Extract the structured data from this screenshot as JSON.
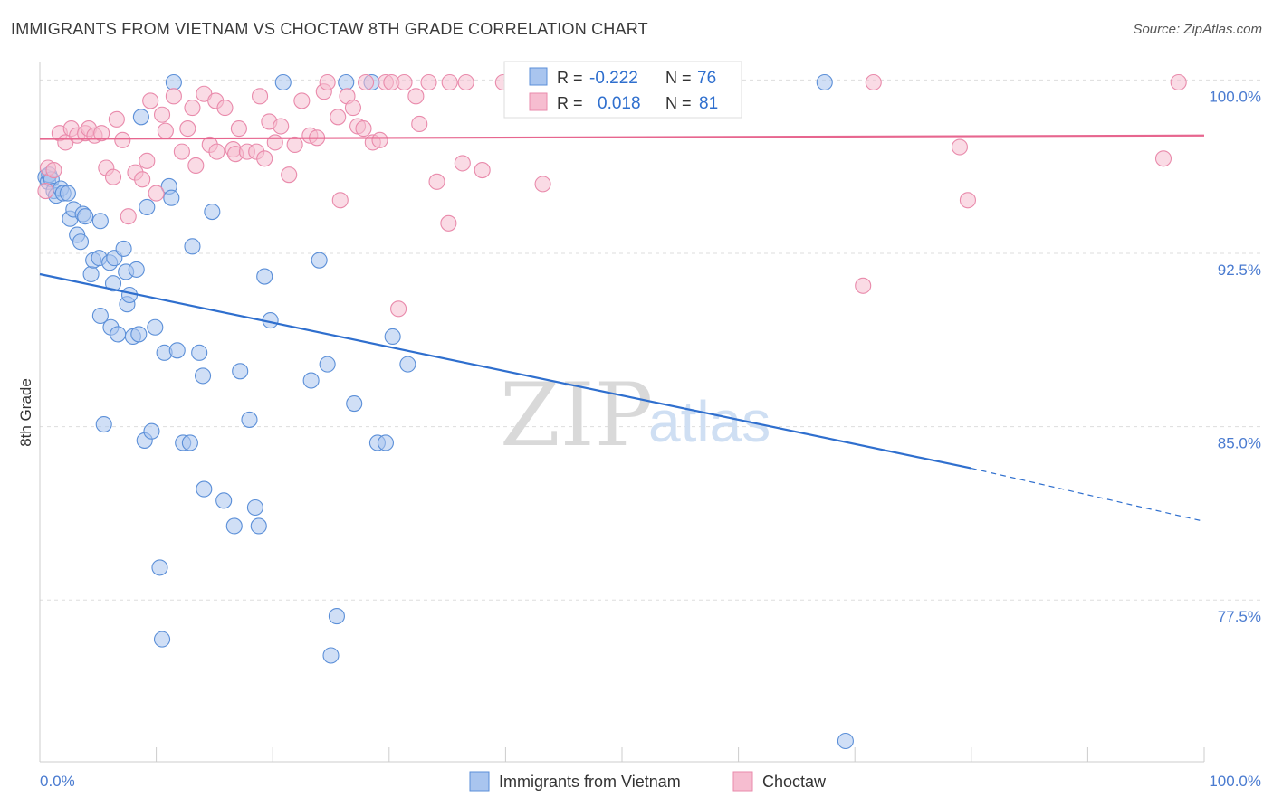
{
  "header": {
    "title": "IMMIGRANTS FROM VIETNAM VS CHOCTAW 8TH GRADE CORRELATION CHART",
    "source": "Source: ZipAtlas.com"
  },
  "watermark": {
    "zip": "ZIP",
    "atlas": "atlas"
  },
  "colors": {
    "vietnam_fill": "#a9c5ef",
    "vietnam_stroke": "#5b8fd8",
    "vietnam_line": "#2f6fce",
    "choctaw_fill": "#f6bdd0",
    "choctaw_stroke": "#e98aab",
    "choctaw_line": "#e7668f",
    "grid": "#dddddd",
    "tick_text": "#4a7bd0"
  },
  "legend_top": {
    "rows": [
      {
        "r_label": "R =",
        "r_value": "-0.222",
        "n_label": "N =",
        "n_value": "76"
      },
      {
        "r_label": "R =",
        "r_value": "0.018",
        "n_label": "N =",
        "n_value": "81"
      }
    ]
  },
  "legend_bottom": {
    "items": [
      "Immigrants from Vietnam",
      "Choctaw"
    ]
  },
  "chart_data": {
    "type": "scatter",
    "title": "IMMIGRANTS FROM VIETNAM VS CHOCTAW 8TH GRADE CORRELATION CHART",
    "xlabel": "",
    "ylabel": "8th Grade",
    "xlim": [
      0,
      100
    ],
    "ylim": [
      70.5,
      100.8
    ],
    "x_tick_labels": [
      "0.0%",
      "100.0%"
    ],
    "y_ticks": [
      100.0,
      92.5,
      85.0,
      77.5
    ],
    "y_tick_labels": [
      "100.0%",
      "92.5%",
      "85.0%",
      "77.5%"
    ],
    "grid": true,
    "legend_position": "top-center",
    "series": [
      {
        "name": "Immigrants from Vietnam",
        "r": -0.222,
        "n": 76,
        "trend": {
          "x": [
            0,
            80,
            100
          ],
          "y": [
            91.6,
            83.2,
            80.9
          ],
          "solid_until": 80
        },
        "points": [
          [
            0.5,
            95.8
          ],
          [
            0.7,
            95.6
          ],
          [
            0.8,
            95.9
          ],
          [
            1.0,
            95.7
          ],
          [
            1.2,
            95.2
          ],
          [
            1.4,
            95.0
          ],
          [
            1.8,
            95.3
          ],
          [
            2.0,
            95.1
          ],
          [
            2.4,
            95.1
          ],
          [
            2.6,
            94.0
          ],
          [
            2.9,
            94.4
          ],
          [
            3.2,
            93.3
          ],
          [
            3.5,
            93.0
          ],
          [
            3.7,
            94.2
          ],
          [
            3.9,
            94.1
          ],
          [
            4.4,
            91.6
          ],
          [
            4.6,
            92.2
          ],
          [
            5.1,
            92.3
          ],
          [
            5.2,
            89.8
          ],
          [
            5.2,
            93.9
          ],
          [
            5.5,
            85.1
          ],
          [
            6.0,
            92.1
          ],
          [
            6.1,
            89.3
          ],
          [
            6.3,
            91.2
          ],
          [
            6.4,
            92.3
          ],
          [
            6.7,
            89.0
          ],
          [
            7.2,
            92.7
          ],
          [
            7.4,
            91.7
          ],
          [
            7.5,
            90.3
          ],
          [
            7.7,
            90.7
          ],
          [
            8.0,
            88.9
          ],
          [
            8.3,
            91.8
          ],
          [
            8.5,
            89.0
          ],
          [
            8.7,
            98.4
          ],
          [
            9.0,
            84.4
          ],
          [
            9.2,
            94.5
          ],
          [
            9.6,
            84.8
          ],
          [
            9.9,
            89.3
          ],
          [
            10.3,
            78.9
          ],
          [
            10.5,
            75.8
          ],
          [
            10.7,
            88.2
          ],
          [
            11.1,
            95.4
          ],
          [
            11.3,
            94.9
          ],
          [
            11.5,
            99.9
          ],
          [
            11.8,
            88.3
          ],
          [
            12.3,
            84.3
          ],
          [
            12.9,
            84.3
          ],
          [
            13.1,
            92.8
          ],
          [
            13.7,
            88.2
          ],
          [
            14.0,
            87.2
          ],
          [
            14.1,
            82.3
          ],
          [
            14.8,
            94.3
          ],
          [
            15.8,
            81.8
          ],
          [
            16.7,
            80.7
          ],
          [
            17.2,
            87.4
          ],
          [
            18.0,
            85.3
          ],
          [
            18.5,
            81.5
          ],
          [
            18.8,
            80.7
          ],
          [
            19.3,
            91.5
          ],
          [
            19.8,
            89.6
          ],
          [
            20.9,
            99.9
          ],
          [
            23.3,
            87.0
          ],
          [
            24.0,
            92.2
          ],
          [
            24.7,
            87.7
          ],
          [
            25.0,
            75.1
          ],
          [
            25.5,
            76.8
          ],
          [
            26.3,
            99.9
          ],
          [
            27.0,
            86.0
          ],
          [
            28.5,
            99.9
          ],
          [
            29.0,
            84.3
          ],
          [
            29.7,
            84.3
          ],
          [
            30.3,
            88.9
          ],
          [
            31.6,
            87.7
          ],
          [
            43.3,
            99.9
          ],
          [
            69.2,
            71.4
          ],
          [
            67.4,
            99.9
          ]
        ]
      },
      {
        "name": "Choctaw",
        "r": 0.018,
        "n": 81,
        "trend": {
          "x": [
            0,
            100
          ],
          "y": [
            97.45,
            97.6
          ]
        },
        "points": [
          [
            0.5,
            95.2
          ],
          [
            0.7,
            96.2
          ],
          [
            1.2,
            96.1
          ],
          [
            1.7,
            97.7
          ],
          [
            2.2,
            97.3
          ],
          [
            2.7,
            97.9
          ],
          [
            3.2,
            97.6
          ],
          [
            3.9,
            97.7
          ],
          [
            4.2,
            97.9
          ],
          [
            4.7,
            97.6
          ],
          [
            5.3,
            97.7
          ],
          [
            5.7,
            96.2
          ],
          [
            6.3,
            95.8
          ],
          [
            6.6,
            98.3
          ],
          [
            7.1,
            97.4
          ],
          [
            7.6,
            94.1
          ],
          [
            8.2,
            96.0
          ],
          [
            8.8,
            95.7
          ],
          [
            9.2,
            96.5
          ],
          [
            9.5,
            99.1
          ],
          [
            10.0,
            95.1
          ],
          [
            10.5,
            98.5
          ],
          [
            10.8,
            97.8
          ],
          [
            11.5,
            99.3
          ],
          [
            12.2,
            96.9
          ],
          [
            12.7,
            97.9
          ],
          [
            13.1,
            98.8
          ],
          [
            13.4,
            96.3
          ],
          [
            14.1,
            99.4
          ],
          [
            14.6,
            97.2
          ],
          [
            15.1,
            99.1
          ],
          [
            15.2,
            96.9
          ],
          [
            15.9,
            98.8
          ],
          [
            16.6,
            97.0
          ],
          [
            16.8,
            96.8
          ],
          [
            17.1,
            97.9
          ],
          [
            17.8,
            96.9
          ],
          [
            18.6,
            96.9
          ],
          [
            18.9,
            99.3
          ],
          [
            19.3,
            96.6
          ],
          [
            19.7,
            98.2
          ],
          [
            20.2,
            97.3
          ],
          [
            20.7,
            98.0
          ],
          [
            21.4,
            95.9
          ],
          [
            21.9,
            97.2
          ],
          [
            22.5,
            99.1
          ],
          [
            23.2,
            97.6
          ],
          [
            23.8,
            97.5
          ],
          [
            24.4,
            99.5
          ],
          [
            24.7,
            99.9
          ],
          [
            25.6,
            98.4
          ],
          [
            25.8,
            94.8
          ],
          [
            26.4,
            99.3
          ],
          [
            26.9,
            98.8
          ],
          [
            27.3,
            98.0
          ],
          [
            27.8,
            97.9
          ],
          [
            28.0,
            99.9
          ],
          [
            28.6,
            97.3
          ],
          [
            29.2,
            97.4
          ],
          [
            29.7,
            99.9
          ],
          [
            30.2,
            99.9
          ],
          [
            30.8,
            90.1
          ],
          [
            31.3,
            99.9
          ],
          [
            32.3,
            99.3
          ],
          [
            32.6,
            98.1
          ],
          [
            33.4,
            99.9
          ],
          [
            34.1,
            95.6
          ],
          [
            35.1,
            93.8
          ],
          [
            35.2,
            99.9
          ],
          [
            36.3,
            96.4
          ],
          [
            36.6,
            99.9
          ],
          [
            38.0,
            96.1
          ],
          [
            39.8,
            99.9
          ],
          [
            43.2,
            95.5
          ],
          [
            45.5,
            99.9
          ],
          [
            70.7,
            91.1
          ],
          [
            71.6,
            99.9
          ],
          [
            79.0,
            97.1
          ],
          [
            79.7,
            94.8
          ],
          [
            96.5,
            96.6
          ],
          [
            97.8,
            99.9
          ]
        ]
      }
    ]
  }
}
